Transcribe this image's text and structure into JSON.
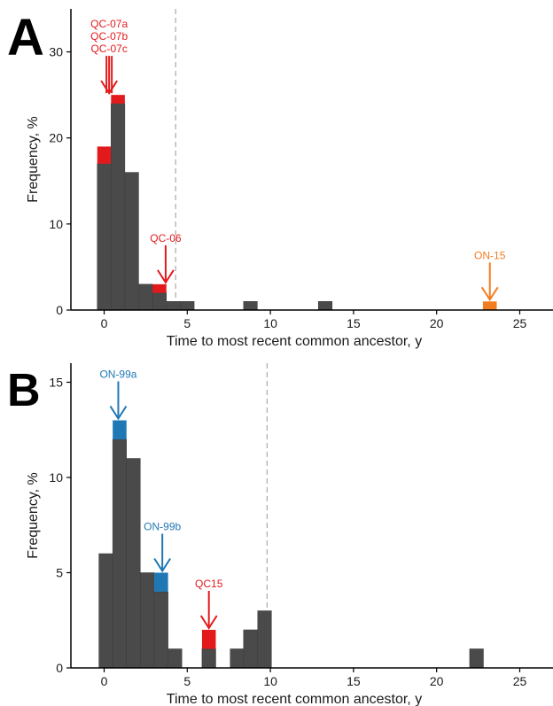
{
  "chart_data": [
    {
      "type": "bar",
      "panel_label": "A",
      "xlabel": "Time to most recent common ancestor, y",
      "ylabel": "Frequency, %",
      "xlim": [
        -2,
        27
      ],
      "ylim": [
        0,
        35
      ],
      "xticks": [
        0,
        5,
        10,
        15,
        20,
        25
      ],
      "yticks": [
        0,
        10,
        20,
        30
      ],
      "bin_width": 0.83,
      "threshold_x": 4.3,
      "grid": false,
      "bars": [
        {
          "x": 0,
          "base": 17,
          "top": 19,
          "highlight": "red"
        },
        {
          "x": 0.83,
          "base": 24,
          "top": 25,
          "highlight": "red"
        },
        {
          "x": 1.66,
          "base": 16
        },
        {
          "x": 2.5,
          "base": 3
        },
        {
          "x": 3.33,
          "base": 2,
          "top": 3,
          "highlight": "red"
        },
        {
          "x": 4.16,
          "base": 1
        },
        {
          "x": 5,
          "base": 1
        },
        {
          "x": 8.8,
          "base": 1
        },
        {
          "x": 13.3,
          "base": 1
        },
        {
          "x": 23.2,
          "base": 1,
          "highlight_only": "orange"
        }
      ],
      "annotations": [
        {
          "lines": [
            "QC-07a",
            "QC-07b",
            "QC-07c"
          ],
          "x": 0.3,
          "y": 25,
          "color": "red",
          "multi": true
        },
        {
          "lines": [
            "QC-06"
          ],
          "x": 3.7,
          "y": 3,
          "color": "red"
        },
        {
          "lines": [
            "ON-15"
          ],
          "x": 23.2,
          "y": 1,
          "color": "orange"
        }
      ]
    },
    {
      "type": "bar",
      "panel_label": "B",
      "xlabel": "Time to most recent common ancestor, y",
      "ylabel": "Frequency, %",
      "xlim": [
        -2,
        27
      ],
      "ylim": [
        0,
        16
      ],
      "xticks": [
        0,
        5,
        10,
        15,
        20,
        25
      ],
      "yticks": [
        0,
        5,
        10,
        15
      ],
      "bin_width": 0.83,
      "threshold_x": 9.8,
      "grid": false,
      "bars": [
        {
          "x": 0.1,
          "base": 6
        },
        {
          "x": 0.93,
          "base": 12,
          "top": 13,
          "highlight": "blue"
        },
        {
          "x": 1.76,
          "base": 11
        },
        {
          "x": 2.6,
          "base": 5
        },
        {
          "x": 3.43,
          "base": 4,
          "top": 5,
          "highlight": "blue"
        },
        {
          "x": 4.26,
          "base": 1
        },
        {
          "x": 6.3,
          "base": 1,
          "top": 2,
          "highlight": "red"
        },
        {
          "x": 8.0,
          "base": 1
        },
        {
          "x": 8.8,
          "base": 2
        },
        {
          "x": 9.65,
          "base": 3
        },
        {
          "x": 22.4,
          "base": 1
        }
      ],
      "annotations": [
        {
          "lines": [
            "ON-99a"
          ],
          "x": 0.85,
          "y": 13,
          "color": "blue"
        },
        {
          "lines": [
            "ON-99b"
          ],
          "x": 3.5,
          "y": 5,
          "color": "blue"
        },
        {
          "lines": [
            "QC15"
          ],
          "x": 6.3,
          "y": 2,
          "color": "red"
        }
      ]
    }
  ],
  "colors": {
    "bar": "#4a4a4a",
    "red": "#e31a1c",
    "blue": "#1f78b4",
    "orange": "#f47c20",
    "dashed": "#aaaaaa",
    "axis": "#000000"
  }
}
